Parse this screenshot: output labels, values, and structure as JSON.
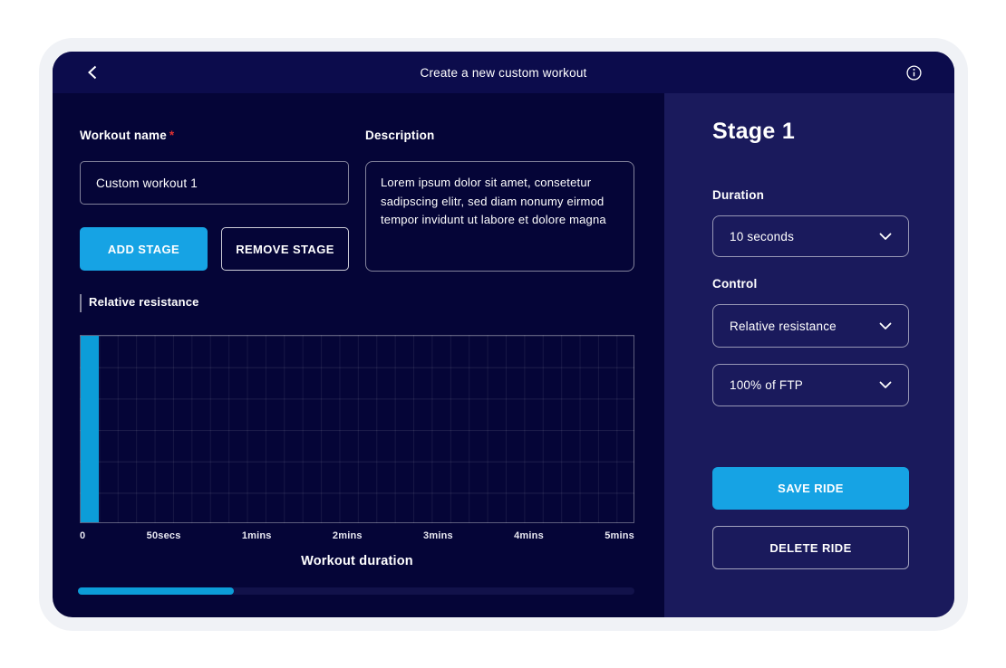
{
  "header": {
    "title": "Create a new custom workout",
    "back_icon": "chevron-left",
    "info_icon": "info-circle"
  },
  "form": {
    "workout_name": {
      "label": "Workout name",
      "required_marker": "*",
      "value": "Custom workout 1"
    },
    "description": {
      "label": "Description",
      "value": "Lorem ipsum dolor sit amet, consetetur sadipscing elitr, sed diam nonumy eirmod tempor invidunt ut labore et dolore magna"
    },
    "add_stage_label": "ADD STAGE",
    "remove_stage_label": "REMOVE STAGE"
  },
  "chart_data": {
    "type": "bar",
    "title": "Relative resistance",
    "xlabel": "Workout duration",
    "ylabel": "Relative resistance",
    "x_tick_labels": [
      "0",
      "50secs",
      "1mins",
      "2mins",
      "3mins",
      "4mins",
      "5mins"
    ],
    "x_range_secs": [
      0,
      300
    ],
    "grid": true,
    "series": [
      {
        "name": "Stage 1",
        "x_start_secs": 0,
        "duration_secs": 10,
        "resistance_pct_of_ftp": 100,
        "bar_height_pct": 100,
        "color": "#0c9dd8"
      }
    ]
  },
  "progress": {
    "percent": 28
  },
  "stage_panel": {
    "title": "Stage 1",
    "duration": {
      "label": "Duration",
      "selected_value": "10 seconds"
    },
    "control": {
      "label": "Control",
      "selected_value": "Relative resistance",
      "target_selected_value": "100% of FTP"
    },
    "save_label": "SAVE RIDE",
    "delete_label": "DELETE RIDE"
  },
  "colors": {
    "accent_blue": "#16a3e4",
    "bar_blue": "#0c9dd8",
    "header_bg": "#0c0c4c",
    "body_bg": "#050537",
    "panel_bg": "#1a1a5c",
    "page_ring": "#f0f2f6",
    "required_red": "#e03131",
    "progress_track": "#12124a"
  }
}
